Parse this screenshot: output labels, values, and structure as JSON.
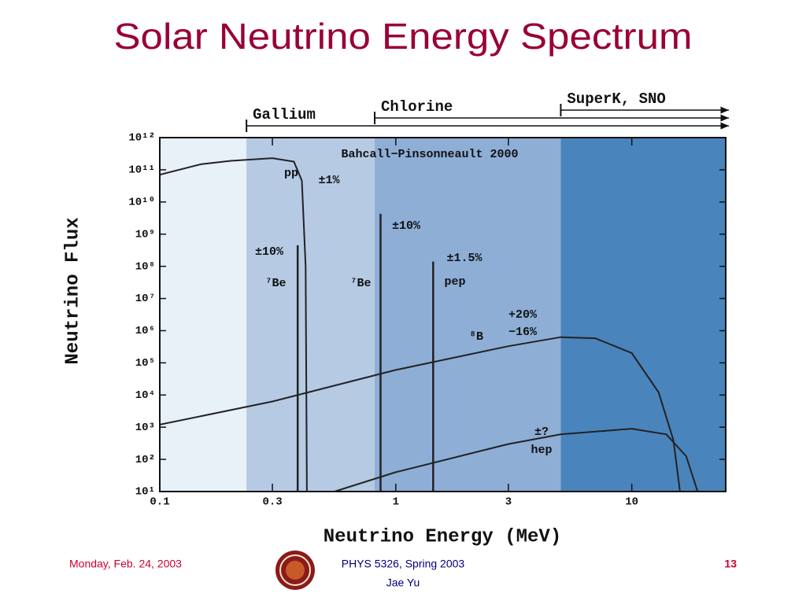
{
  "chart_data": {
    "type": "line",
    "title": "Solar Neutrino Energy Spectrum",
    "annotation": "Bahcall−Pinsonneault 2000",
    "xlabel": "Neutrino Energy (MeV)",
    "ylabel": "Neutrino Flux",
    "xscale": "log",
    "yscale": "log",
    "xlim": [
      0.1,
      25
    ],
    "ylim": [
      10,
      1000000000000
    ],
    "xticks": [
      0.1,
      0.3,
      1,
      3,
      10
    ],
    "yticks": [
      {
        "value": 10,
        "label": "10¹"
      },
      {
        "value": 100,
        "label": "10²"
      },
      {
        "value": 1000,
        "label": "10³"
      },
      {
        "value": 10000,
        "label": "10⁴"
      },
      {
        "value": 100000,
        "label": "10⁵"
      },
      {
        "value": 1000000,
        "label": "10⁶"
      },
      {
        "value": 10000000,
        "label": "10⁷"
      },
      {
        "value": 100000000,
        "label": "10⁸"
      },
      {
        "value": 1000000000,
        "label": "10⁹"
      },
      {
        "value": 10000000000,
        "label": "10¹⁰"
      },
      {
        "value": 100000000000,
        "label": "10¹¹"
      },
      {
        "value": 1000000000000,
        "label": "10¹²"
      }
    ],
    "grid": false,
    "background": "#e8f0f8",
    "regions": [
      {
        "name": "Gallium",
        "threshold": 0.233,
        "color": "#b6cae4"
      },
      {
        "name": "Chlorine",
        "threshold": 0.814,
        "color": "#8eaed6"
      },
      {
        "name": "SuperK, SNO",
        "threshold": 5,
        "color": "#4a84bc"
      }
    ],
    "series": [
      {
        "name": "pp",
        "uncertainty": [
          "±1%"
        ],
        "color": "#222222",
        "x": [
          0.1,
          0.15,
          0.2,
          0.3,
          0.37,
          0.4,
          0.415,
          0.42
        ],
        "values": [
          70000000000,
          150000000000,
          190000000000,
          230000000000,
          180000000000,
          46000000000,
          100000000,
          10
        ]
      },
      {
        "name": "⁸B",
        "uncertainty": [
          "+20%",
          "−16%"
        ],
        "color": "#222222",
        "x": [
          0.1,
          0.3,
          1,
          3,
          5,
          7,
          10,
          13,
          15,
          16
        ],
        "values": [
          1200,
          6300,
          60000,
          330000,
          630000,
          580000,
          200000,
          12000,
          400,
          10
        ]
      },
      {
        "name": "hep",
        "uncertainty": [
          "±?"
        ],
        "color": "#222222",
        "x": [
          0.55,
          1,
          3,
          5,
          10,
          14,
          17,
          19
        ],
        "values": [
          10,
          40,
          300,
          600,
          900,
          600,
          125,
          10
        ]
      }
    ],
    "lines": [
      {
        "name": "⁷Be",
        "uncertainty": [
          "±10%"
        ],
        "x": 0.384,
        "value": 450000000
      },
      {
        "name": "⁷Be",
        "uncertainty": [
          "±10%"
        ],
        "x": 0.862,
        "value": 4300000000
      },
      {
        "name": "pep",
        "uncertainty": [
          "±1.5%"
        ],
        "x": 1.44,
        "value": 140000000
      }
    ],
    "footer": {
      "date": "Monday, Feb. 24, 2003",
      "course": "PHYS 5326, Spring 2003",
      "author": "Jae Yu",
      "page": "13"
    }
  }
}
